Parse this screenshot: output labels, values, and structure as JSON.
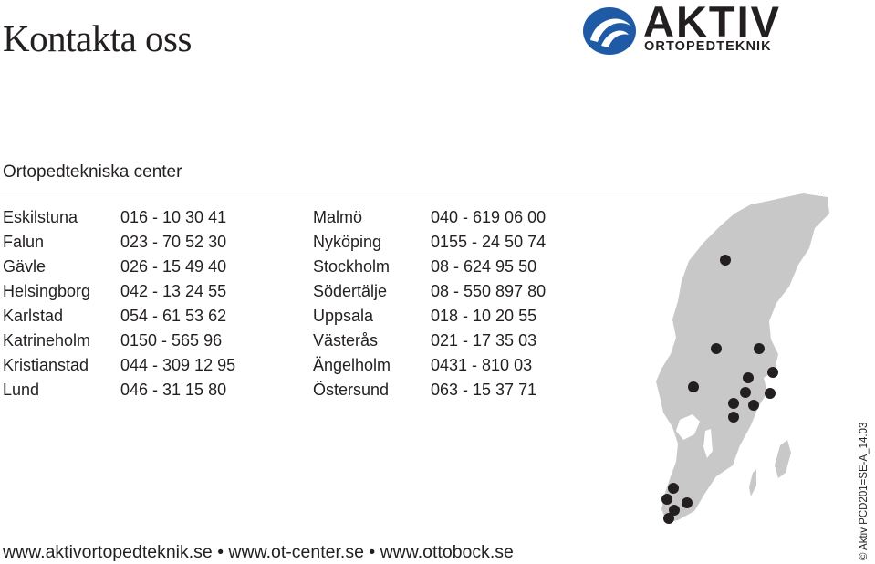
{
  "title": "Kontakta oss",
  "logo": {
    "name": "AKTIV",
    "subtitle": "ORTOPEDTEKNIK",
    "brand_color": "#1f5aa6"
  },
  "section_heading": "Ortopedtekniska center",
  "centers": [
    {
      "city": "Eskilstuna",
      "phone": "016 - 10 30 41"
    },
    {
      "city": "Falun",
      "phone": "023 - 70 52 30"
    },
    {
      "city": "Gävle",
      "phone": "026 - 15 49 40"
    },
    {
      "city": "Helsingborg",
      "phone": "042 - 13 24 55"
    },
    {
      "city": "Karlstad",
      "phone": "054 - 61 53 62"
    },
    {
      "city": "Katrineholm",
      "phone": "0150 - 565 96"
    },
    {
      "city": "Kristianstad",
      "phone": "044 - 309 12 95"
    },
    {
      "city": "Lund",
      "phone": "046 - 31 15 80"
    },
    {
      "city": "Malmö",
      "phone": "040 - 619 06 00"
    },
    {
      "city": "Nyköping",
      "phone": "0155 - 24 50 74"
    },
    {
      "city": "Stockholm",
      "phone": "08 - 624 95 50"
    },
    {
      "city": "Södertälje",
      "phone": "08 - 550 897 80"
    },
    {
      "city": "Uppsala",
      "phone": "018 - 10 20 55"
    },
    {
      "city": "Västerås",
      "phone": "021 - 17 35 03"
    },
    {
      "city": "Ängelholm",
      "phone": "0431 - 810 03"
    },
    {
      "city": "Östersund",
      "phone": "063 - 15 37 71"
    }
  ],
  "footer_links": "www.aktivortopedteknik.se • www.ot-center.se • www.ottobock.se",
  "doc_code": "© Aktiv PCD201=SE-A_14.03",
  "map": {
    "land_color": "#c8c8c8",
    "marker_color": "#231f20"
  }
}
